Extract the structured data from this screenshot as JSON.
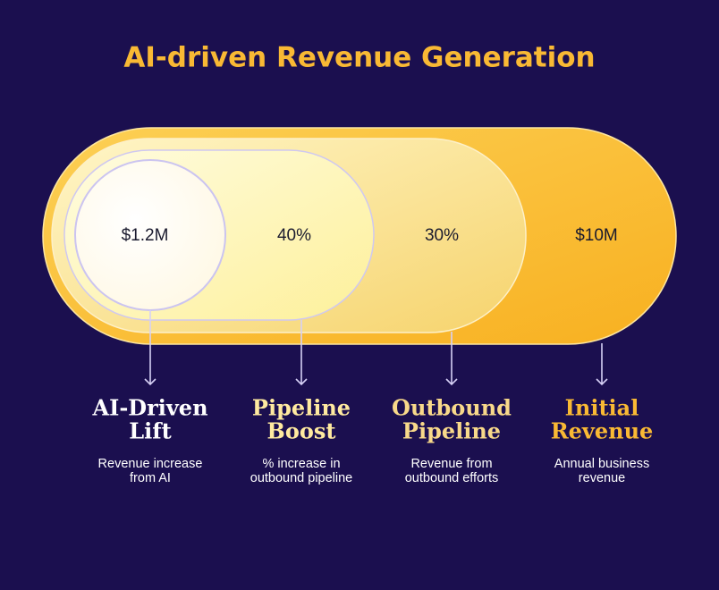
{
  "title": "AI-driven Revenue Generation",
  "stages": [
    {
      "value": "$1.2M",
      "heading_lines": [
        "AI-Driven",
        "Lift"
      ],
      "description_lines": [
        "Revenue increase",
        "from AI"
      ]
    },
    {
      "value": "40%",
      "heading_lines": [
        "Pipeline",
        "Boost"
      ],
      "description_lines": [
        "% increase in",
        "outbound pipeline"
      ]
    },
    {
      "value": "30%",
      "heading_lines": [
        "Outbound",
        "Pipeline"
      ],
      "description_lines": [
        "Revenue from",
        "outbound efforts"
      ]
    },
    {
      "value": "$10M",
      "heading_lines": [
        "Initial",
        "Revenue"
      ],
      "description_lines": [
        "Annual business",
        "revenue"
      ]
    }
  ]
}
